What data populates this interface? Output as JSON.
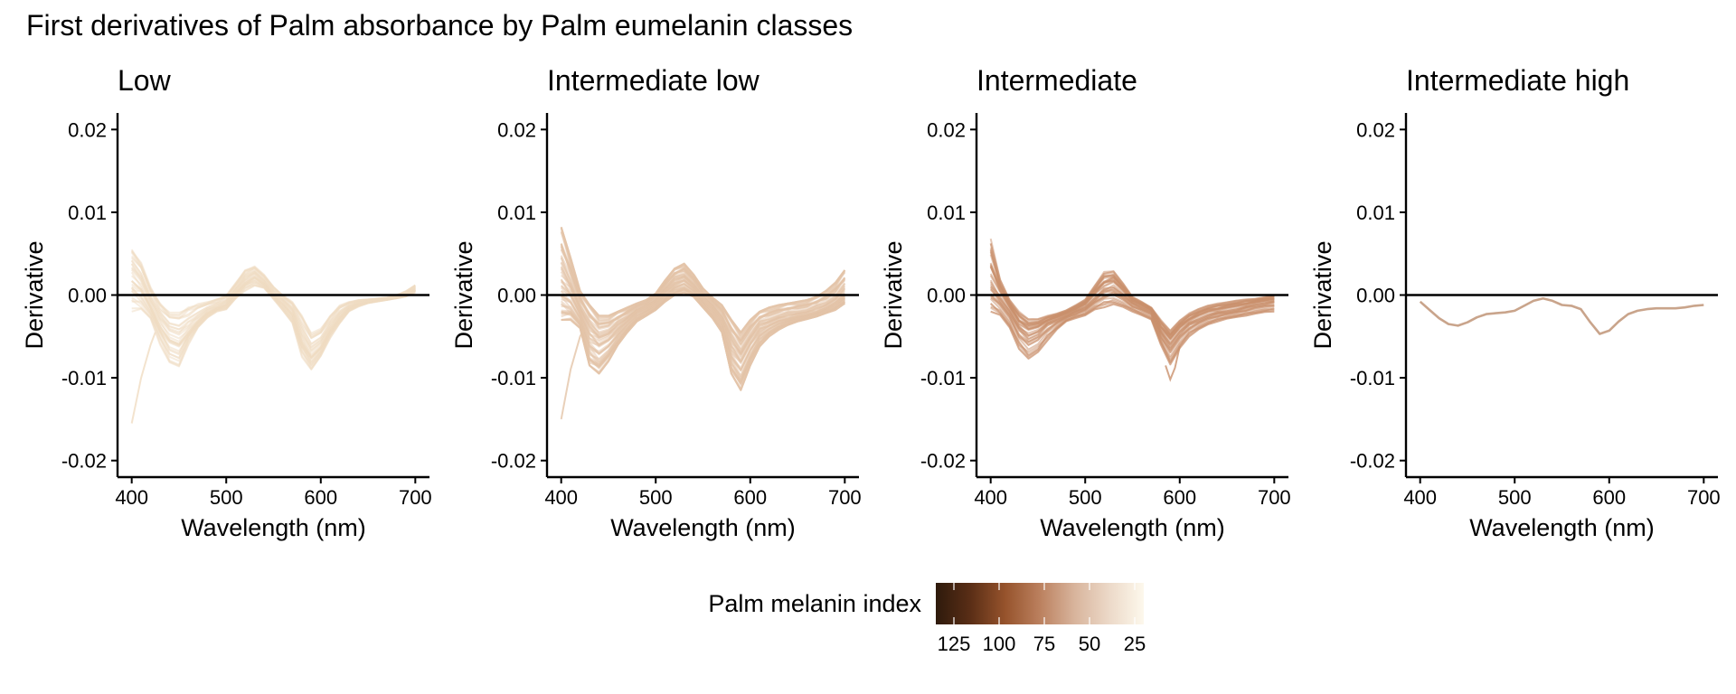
{
  "chart_data": {
    "type": "line",
    "title": "First derivatives of Palm absorbance by Palm eumelanin classes",
    "xlabel": "Wavelength (nm)",
    "ylabel": "Derivative",
    "xlim": [
      385,
      715
    ],
    "ylim": [
      -0.022,
      0.022
    ],
    "xticks": [
      400,
      500,
      600,
      700
    ],
    "xtick_labels": [
      "400",
      "500",
      "600",
      "700"
    ],
    "yticks": [
      -0.02,
      -0.01,
      0,
      0.01,
      0.02
    ],
    "ytick_labels": [
      "-0.02",
      "-0.01",
      "0.00",
      "0.01",
      "0.02"
    ],
    "reference_line": 0,
    "legend": {
      "title": "Palm melanin index",
      "placement": "bottom",
      "colors": [
        "#2e1a0c",
        "#5a2e16",
        "#96532c",
        "#bb805e",
        "#d8b49c",
        "#ecd9c8",
        "#fdf8ec"
      ],
      "tick_values": [
        125,
        100,
        75,
        50,
        25
      ],
      "tick_labels": [
        "125",
        "100",
        "75",
        "50",
        "25"
      ]
    },
    "panels": [
      {
        "name": "Low",
        "series_count": 30,
        "color": "#f0dcc2",
        "x": [
          400,
          410,
          420,
          430,
          440,
          450,
          460,
          470,
          480,
          490,
          500,
          510,
          520,
          530,
          540,
          550,
          560,
          570,
          580,
          590,
          600,
          610,
          620,
          630,
          640,
          650,
          660,
          670,
          680,
          690,
          700
        ],
        "median": [
          0.003,
          0.0015,
          -0.001,
          -0.003,
          -0.0045,
          -0.005,
          -0.004,
          -0.003,
          -0.002,
          -0.0015,
          -0.001,
          0.0005,
          0.0018,
          0.0025,
          0.0015,
          0.0,
          -0.0008,
          -0.002,
          -0.005,
          -0.007,
          -0.006,
          -0.004,
          -0.0025,
          -0.0015,
          -0.001,
          -0.0008,
          -0.0006,
          -0.0005,
          -0.0003,
          0.0,
          0.0008
        ],
        "low": [
          -0.002,
          -0.002,
          -0.003,
          -0.006,
          -0.0085,
          -0.009,
          -0.006,
          -0.004,
          -0.0028,
          -0.002,
          -0.0018,
          -0.0005,
          0.0005,
          0.001,
          0.0008,
          -0.0005,
          -0.002,
          -0.0035,
          -0.0075,
          -0.0092,
          -0.0075,
          -0.0052,
          -0.0035,
          -0.002,
          -0.0014,
          -0.001,
          -0.0008,
          -0.0006,
          -0.0004,
          -0.0002,
          0.0003
        ],
        "high": [
          0.0055,
          0.004,
          0.001,
          -0.001,
          -0.002,
          -0.002,
          -0.0015,
          -0.001,
          -0.0008,
          -0.0005,
          0.0,
          0.0015,
          0.003,
          0.0035,
          0.0025,
          0.001,
          0.0,
          -0.0008,
          -0.0025,
          -0.0045,
          -0.004,
          -0.0025,
          -0.0012,
          -0.0008,
          -0.0006,
          -0.0005,
          -0.0004,
          -0.0003,
          0.0,
          0.0005,
          0.0012
        ],
        "outlier": {
          "x": [
            400,
            410,
            420,
            425
          ],
          "y": [
            -0.0155,
            -0.01,
            -0.006,
            -0.0045
          ]
        }
      },
      {
        "name": "Intermediate low",
        "series_count": 60,
        "color": "#e4c4a8",
        "x": [
          400,
          410,
          420,
          430,
          440,
          450,
          460,
          470,
          480,
          490,
          500,
          510,
          520,
          530,
          540,
          550,
          560,
          570,
          580,
          590,
          600,
          610,
          620,
          630,
          640,
          650,
          660,
          670,
          680,
          690,
          700
        ],
        "median": [
          0.002,
          0.0005,
          -0.002,
          -0.0045,
          -0.0055,
          -0.005,
          -0.004,
          -0.003,
          -0.002,
          -0.0015,
          -0.0008,
          0.0005,
          0.0015,
          0.002,
          0.001,
          -0.0005,
          -0.0015,
          -0.003,
          -0.006,
          -0.0075,
          -0.0055,
          -0.004,
          -0.0035,
          -0.003,
          -0.0028,
          -0.0025,
          -0.0023,
          -0.002,
          -0.0015,
          -0.0008,
          0.0002
        ],
        "low": [
          -0.003,
          -0.003,
          -0.004,
          -0.0085,
          -0.0095,
          -0.008,
          -0.006,
          -0.0045,
          -0.0032,
          -0.0025,
          -0.0018,
          -0.0008,
          0.0,
          0.0003,
          -0.0002,
          -0.0015,
          -0.0028,
          -0.0045,
          -0.0095,
          -0.0115,
          -0.0085,
          -0.0062,
          -0.005,
          -0.0042,
          -0.0036,
          -0.0032,
          -0.0029,
          -0.0026,
          -0.0022,
          -0.0018,
          -0.001
        ],
        "high": [
          0.0082,
          0.0045,
          0.0005,
          -0.0012,
          -0.0025,
          -0.0025,
          -0.002,
          -0.0015,
          -0.001,
          -0.0006,
          0.0002,
          0.0018,
          0.0032,
          0.0038,
          0.0025,
          0.0008,
          -0.0003,
          -0.0012,
          -0.003,
          -0.0045,
          -0.003,
          -0.002,
          -0.0015,
          -0.0012,
          -0.001,
          -0.0008,
          -0.0006,
          -0.0002,
          0.0005,
          0.0015,
          0.003
        ],
        "outlier": {
          "x": [
            400,
            410,
            420,
            425
          ],
          "y": [
            -0.015,
            -0.009,
            -0.005,
            -0.004
          ]
        }
      },
      {
        "name": "Intermediate",
        "series_count": 35,
        "color": "#c9906c",
        "x": [
          400,
          410,
          420,
          430,
          440,
          450,
          460,
          470,
          480,
          490,
          500,
          510,
          520,
          530,
          540,
          550,
          560,
          570,
          580,
          590,
          600,
          610,
          620,
          630,
          640,
          650,
          660,
          670,
          680,
          690,
          700
        ],
        "median": [
          0.001,
          -0.0005,
          -0.002,
          -0.004,
          -0.005,
          -0.0045,
          -0.0035,
          -0.003,
          -0.0025,
          -0.002,
          -0.0015,
          -0.0005,
          0.0005,
          0.0008,
          0.0,
          -0.001,
          -0.0015,
          -0.002,
          -0.0045,
          -0.006,
          -0.0045,
          -0.0035,
          -0.003,
          -0.0025,
          -0.0022,
          -0.002,
          -0.0018,
          -0.0015,
          -0.0012,
          -0.001,
          -0.0008
        ],
        "low": [
          -0.002,
          -0.0025,
          -0.004,
          -0.0065,
          -0.0078,
          -0.007,
          -0.0055,
          -0.0042,
          -0.0032,
          -0.0028,
          -0.0025,
          -0.0018,
          -0.0015,
          -0.0012,
          -0.0015,
          -0.002,
          -0.0025,
          -0.003,
          -0.006,
          -0.0085,
          -0.0065,
          -0.005,
          -0.0042,
          -0.0036,
          -0.0032,
          -0.0029,
          -0.0027,
          -0.0025,
          -0.0023,
          -0.0021,
          -0.002
        ],
        "high": [
          0.0068,
          0.002,
          -0.0005,
          -0.002,
          -0.0028,
          -0.0028,
          -0.0025,
          -0.0022,
          -0.0018,
          -0.0012,
          -0.0005,
          0.0012,
          0.0028,
          0.003,
          0.0015,
          -0.0002,
          -0.0008,
          -0.0015,
          -0.003,
          -0.0042,
          -0.003,
          -0.0022,
          -0.0016,
          -0.0012,
          -0.001,
          -0.0008,
          -0.0006,
          -0.0005,
          -0.0004,
          -0.0002,
          0.0
        ],
        "outlier": {
          "x": [
            585,
            590,
            595,
            600
          ],
          "y": [
            -0.0085,
            -0.0102,
            -0.0088,
            -0.0062
          ]
        }
      },
      {
        "name": "Intermediate high",
        "series_count": 1,
        "color": "#c39a7e",
        "x": [
          400,
          410,
          420,
          430,
          440,
          450,
          460,
          470,
          480,
          490,
          500,
          510,
          520,
          530,
          540,
          550,
          560,
          570,
          580,
          590,
          600,
          610,
          620,
          630,
          640,
          650,
          660,
          670,
          680,
          690,
          700
        ],
        "median": [
          -0.0008,
          -0.0018,
          -0.0028,
          -0.0035,
          -0.0037,
          -0.0033,
          -0.0027,
          -0.0023,
          -0.0022,
          -0.0021,
          -0.0019,
          -0.0013,
          -0.0007,
          -0.0004,
          -0.0007,
          -0.0012,
          -0.0013,
          -0.0017,
          -0.0033,
          -0.0047,
          -0.0043,
          -0.0032,
          -0.0023,
          -0.0019,
          -0.0017,
          -0.0016,
          -0.0016,
          -0.0016,
          -0.0015,
          -0.0013,
          -0.0012
        ]
      }
    ]
  }
}
